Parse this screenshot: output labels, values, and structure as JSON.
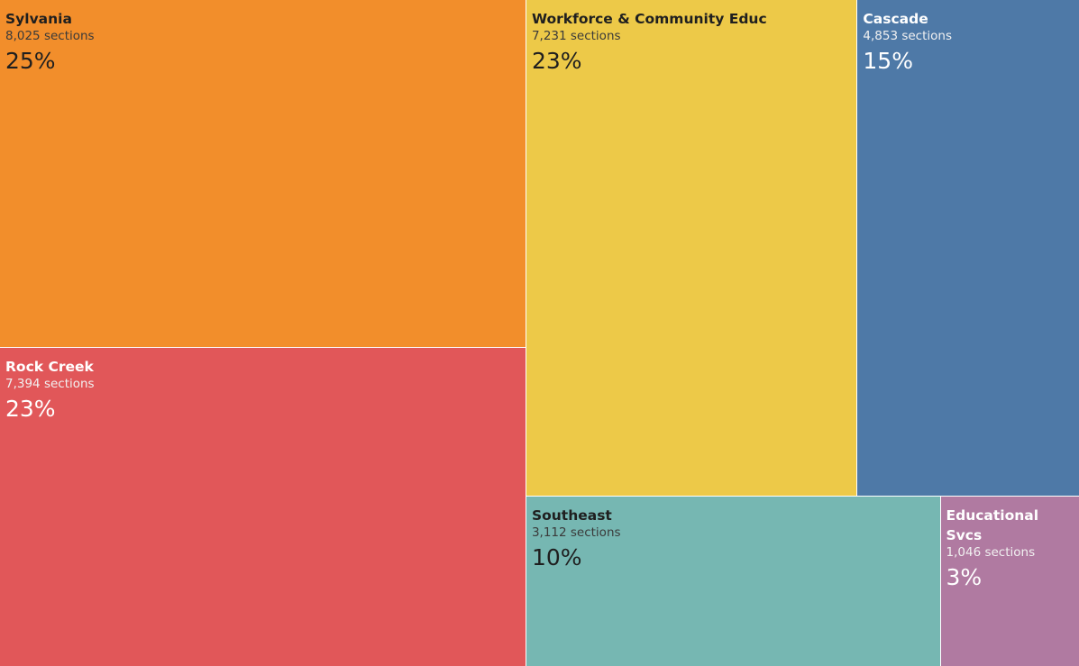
{
  "chart_data": {
    "type": "treemap",
    "unit": "sections",
    "items": [
      {
        "name": "Sylvania",
        "value": 8025,
        "sections_label": "8,025 sections",
        "percent_label": "25%",
        "color": "#F28E2B"
      },
      {
        "name": "Rock Creek",
        "value": 7394,
        "sections_label": "7,394 sections",
        "percent_label": "23%",
        "color": "#E15759"
      },
      {
        "name": "Workforce & Community Educ",
        "value": 7231,
        "sections_label": "7,231 sections",
        "percent_label": "23%",
        "color": "#EDC948"
      },
      {
        "name": "Cascade",
        "value": 4853,
        "sections_label": "4,853 sections",
        "percent_label": "15%",
        "color": "#4E79A7"
      },
      {
        "name": "Southeast",
        "value": 3112,
        "sections_label": "3,112 sections",
        "percent_label": "10%",
        "color": "#76B7B2"
      },
      {
        "name": "Educational Svcs",
        "value": 1046,
        "sections_label": "1,046 sections",
        "percent_label": "3%",
        "color": "#B07AA1"
      }
    ]
  }
}
